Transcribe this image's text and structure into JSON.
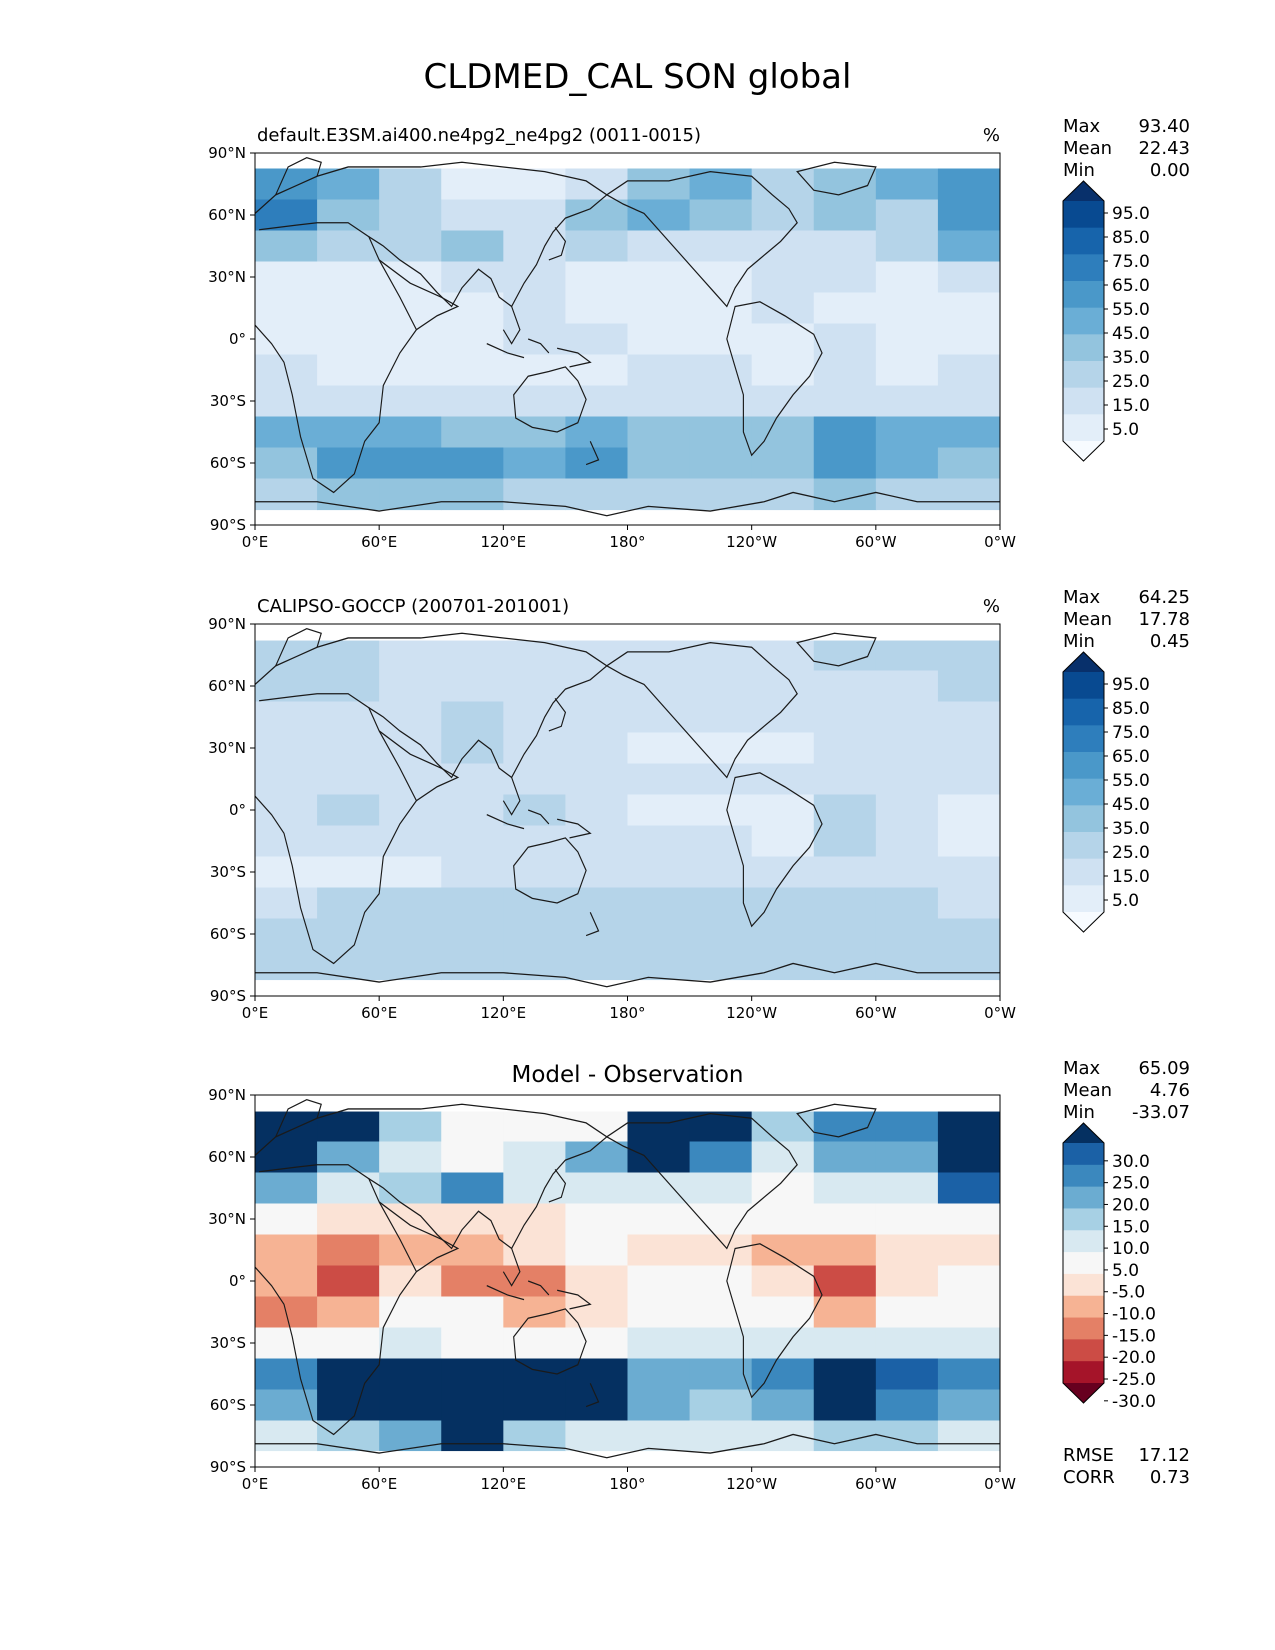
{
  "figure": {
    "title": "CLDMED_CAL SON global"
  },
  "lon_ticks": [
    "0°E",
    "60°E",
    "120°E",
    "180°",
    "120°W",
    "60°W",
    "0°W"
  ],
  "lat_ticks": [
    "90°N",
    "60°N",
    "30°N",
    "0°",
    "30°S",
    "60°S",
    "90°S"
  ],
  "colors": {
    "blues": [
      "#f7fbff",
      "#e3eef9",
      "#cfe1f2",
      "#b5d4e9",
      "#93c4de",
      "#6aaed6",
      "#4a98c9",
      "#2e7ebc",
      "#1764ab",
      "#084a91",
      "#08306b"
    ],
    "diverging": [
      "#67001f",
      "#a51429",
      "#cc4c45",
      "#e48066",
      "#f6b394",
      "#fbe3d6",
      "#f7f7f7",
      "#d8e9f1",
      "#a7d0e4",
      "#6bacd1",
      "#3b88be",
      "#1b61a6",
      "#053061"
    ]
  },
  "chart_data": [
    {
      "type": "heatmap",
      "panel": "test",
      "title": "default.E3SM.ai400.ne4pg2_ne4pg2 (0011-0015)",
      "units": "%",
      "stats": {
        "max_label": "Max",
        "max": "93.40",
        "mean_label": "Mean",
        "mean": "22.43",
        "min_label": "Min",
        "min": "0.00"
      },
      "colorbar_levels": [
        "95.0",
        "85.0",
        "75.0",
        "65.0",
        "55.0",
        "45.0",
        "35.0",
        "25.0",
        "15.0",
        "5.0"
      ],
      "lat": [
        75,
        60,
        45,
        30,
        15,
        0,
        -15,
        -30,
        -45,
        -60,
        -75
      ],
      "lon": [
        15,
        45,
        75,
        105,
        135,
        165,
        195,
        225,
        255,
        285,
        315,
        345
      ],
      "values": [
        [
          55,
          45,
          25,
          10,
          10,
          15,
          40,
          45,
          30,
          40,
          45,
          60
        ],
        [
          65,
          40,
          25,
          15,
          20,
          35,
          45,
          40,
          25,
          35,
          30,
          60
        ],
        [
          35,
          25,
          30,
          35,
          20,
          25,
          20,
          20,
          15,
          20,
          25,
          45
        ],
        [
          10,
          8,
          10,
          15,
          15,
          10,
          10,
          12,
          15,
          15,
          10,
          15
        ],
        [
          5,
          5,
          5,
          10,
          15,
          10,
          8,
          10,
          15,
          12,
          5,
          5
        ],
        [
          10,
          5,
          5,
          10,
          15,
          15,
          12,
          10,
          10,
          15,
          5,
          10
        ],
        [
          15,
          10,
          10,
          10,
          10,
          10,
          15,
          15,
          10,
          15,
          10,
          15
        ],
        [
          20,
          20,
          15,
          15,
          15,
          15,
          20,
          20,
          20,
          20,
          20,
          20
        ],
        [
          45,
          50,
          45,
          40,
          40,
          50,
          40,
          35,
          40,
          55,
          50,
          45
        ],
        [
          40,
          55,
          60,
          55,
          50,
          60,
          40,
          35,
          40,
          60,
          45,
          40
        ],
        [
          30,
          35,
          35,
          35,
          30,
          30,
          30,
          30,
          30,
          35,
          30,
          30
        ]
      ]
    },
    {
      "type": "heatmap",
      "panel": "reference",
      "title": "CALIPSO-GOCCP (200701-201001)",
      "units": "%",
      "stats": {
        "max_label": "Max",
        "max": "64.25",
        "mean_label": "Mean",
        "mean": "17.78",
        "min_label": "Min",
        "min": "0.45"
      },
      "colorbar_levels": [
        "95.0",
        "85.0",
        "75.0",
        "65.0",
        "55.0",
        "45.0",
        "35.0",
        "25.0",
        "15.0",
        "5.0"
      ],
      "lat": [
        75,
        60,
        45,
        30,
        15,
        0,
        -15,
        -30,
        -45,
        -60,
        -75
      ],
      "lon": [
        15,
        45,
        75,
        105,
        135,
        165,
        195,
        225,
        255,
        285,
        315,
        345
      ],
      "values": [
        [
          25,
          25,
          20,
          20,
          15,
          20,
          20,
          20,
          20,
          25,
          30,
          25
        ],
        [
          25,
          25,
          20,
          20,
          20,
          20,
          20,
          20,
          20,
          20,
          20,
          25
        ],
        [
          20,
          20,
          20,
          25,
          20,
          15,
          15,
          15,
          15,
          15,
          15,
          20
        ],
        [
          15,
          15,
          20,
          30,
          20,
          15,
          10,
          10,
          10,
          15,
          15,
          15
        ],
        [
          15,
          20,
          15,
          15,
          15,
          15,
          15,
          15,
          15,
          15,
          15,
          15
        ],
        [
          20,
          25,
          15,
          20,
          25,
          15,
          10,
          8,
          10,
          25,
          15,
          10
        ],
        [
          15,
          20,
          15,
          15,
          15,
          15,
          15,
          15,
          10,
          25,
          15,
          10
        ],
        [
          10,
          10,
          10,
          15,
          15,
          15,
          15,
          15,
          15,
          15,
          15,
          15
        ],
        [
          20,
          25,
          25,
          25,
          25,
          25,
          25,
          25,
          25,
          25,
          25,
          20
        ],
        [
          25,
          25,
          25,
          25,
          25,
          25,
          25,
          25,
          25,
          25,
          25,
          25
        ],
        [
          25,
          25,
          25,
          25,
          25,
          25,
          25,
          25,
          25,
          25,
          25,
          25
        ]
      ]
    },
    {
      "type": "heatmap",
      "panel": "difference",
      "title": "Model - Observation",
      "units": "",
      "stats": {
        "max_label": "Max",
        "max": "65.09",
        "mean_label": "Mean",
        "mean": "4.76",
        "min_label": "Min",
        "min": "-33.07"
      },
      "colorbar_levels": [
        "30.0",
        "25.0",
        "20.0",
        "15.0",
        "10.0",
        "5.0",
        "-5.0",
        "-10.0",
        "-15.0",
        "-20.0",
        "-25.0",
        "-30.0"
      ],
      "extra_stats": {
        "rmse_label": "RMSE",
        "rmse": "17.12",
        "corr_label": "CORR",
        "corr": "0.73"
      },
      "lat": [
        75,
        60,
        45,
        30,
        15,
        0,
        -15,
        -30,
        -45,
        -60,
        -75
      ],
      "lon": [
        15,
        45,
        75,
        105,
        135,
        165,
        195,
        225,
        255,
        285,
        315,
        345
      ],
      "values": [
        [
          35,
          35,
          10,
          0,
          0,
          -5,
          35,
          30,
          10,
          20,
          20,
          35
        ],
        [
          35,
          15,
          5,
          0,
          5,
          15,
          30,
          20,
          5,
          15,
          15,
          35
        ],
        [
          15,
          5,
          10,
          20,
          5,
          5,
          5,
          5,
          0,
          5,
          5,
          25
        ],
        [
          -5,
          -10,
          -10,
          -10,
          -10,
          0,
          0,
          0,
          0,
          0,
          0,
          -5
        ],
        [
          -15,
          -20,
          -15,
          -15,
          -10,
          -5,
          -10,
          -10,
          -15,
          -15,
          -10,
          -10
        ],
        [
          -15,
          -25,
          -10,
          -20,
          -20,
          -10,
          -5,
          0,
          -10,
          -25,
          -10,
          -5
        ],
        [
          -20,
          -15,
          -5,
          -5,
          -15,
          -10,
          0,
          0,
          0,
          -15,
          -5,
          0
        ],
        [
          0,
          0,
          5,
          0,
          0,
          0,
          5,
          5,
          5,
          5,
          5,
          5
        ],
        [
          20,
          30,
          35,
          30,
          30,
          30,
          15,
          15,
          20,
          30,
          25,
          20
        ],
        [
          15,
          35,
          35,
          35,
          30,
          30,
          15,
          10,
          15,
          30,
          20,
          15
        ],
        [
          5,
          10,
          15,
          30,
          10,
          5,
          5,
          5,
          5,
          10,
          10,
          5
        ]
      ]
    }
  ]
}
